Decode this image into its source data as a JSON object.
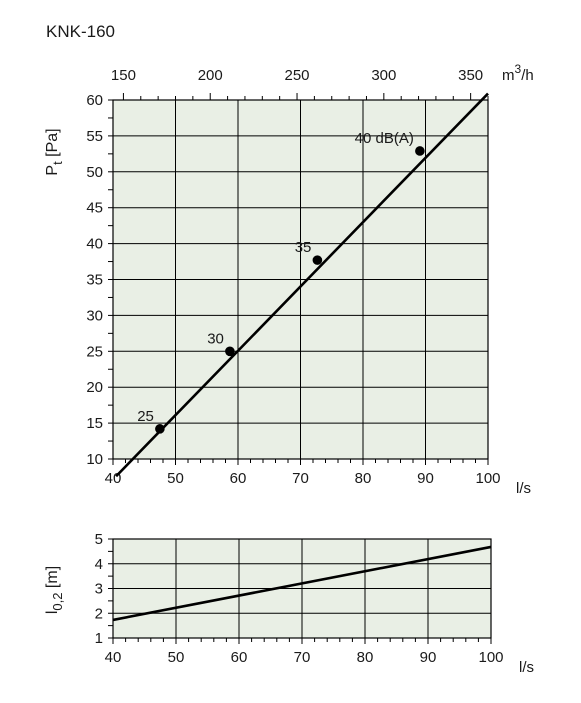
{
  "page": {
    "title": "KNK-160"
  },
  "chart_data": [
    {
      "type": "line",
      "xlabel": "l/s",
      "ylabel_main": "P",
      "ylabel_sub": "t",
      "ylabel_unit": "[Pa]",
      "x_ticks": [
        40,
        50,
        60,
        70,
        80,
        90,
        100
      ],
      "y_ticks": [
        10,
        15,
        20,
        25,
        30,
        35,
        40,
        45,
        50,
        55,
        60
      ],
      "xlim": [
        40,
        100
      ],
      "ylim": [
        10,
        60
      ],
      "top_axis": {
        "label_main": "m",
        "label_sup": "3",
        "label_tail": "/h",
        "ticks": [
          150,
          200,
          250,
          300,
          350
        ],
        "range": [
          144,
          360
        ]
      },
      "grid": true,
      "background": "#e9efe5",
      "line_color": "#000000",
      "series": [
        {
          "x": [
            40.5,
            100
          ],
          "y": [
            7.6,
            60.9
          ]
        }
      ],
      "points": [
        {
          "x": 47.5,
          "y": 14.2,
          "label": "25"
        },
        {
          "x": 58.7,
          "y": 25.0,
          "label": "30"
        },
        {
          "x": 72.7,
          "y": 37.7,
          "label": "35"
        },
        {
          "x": 89.1,
          "y": 52.9,
          "label": "40 dB(A)"
        }
      ]
    },
    {
      "type": "line",
      "xlabel": "l/s",
      "ylabel_main": "l",
      "ylabel_sub": "0,2",
      "ylabel_unit": "[m]",
      "x_ticks": [
        40,
        50,
        60,
        70,
        80,
        90,
        100
      ],
      "y_ticks": [
        1,
        2,
        3,
        4,
        5
      ],
      "xlim": [
        40,
        100
      ],
      "ylim": [
        1,
        5
      ],
      "grid": true,
      "background": "#e9efe5",
      "line_color": "#000000",
      "series": [
        {
          "x": [
            40,
            100
          ],
          "y": [
            1.73,
            4.68
          ]
        }
      ]
    }
  ]
}
